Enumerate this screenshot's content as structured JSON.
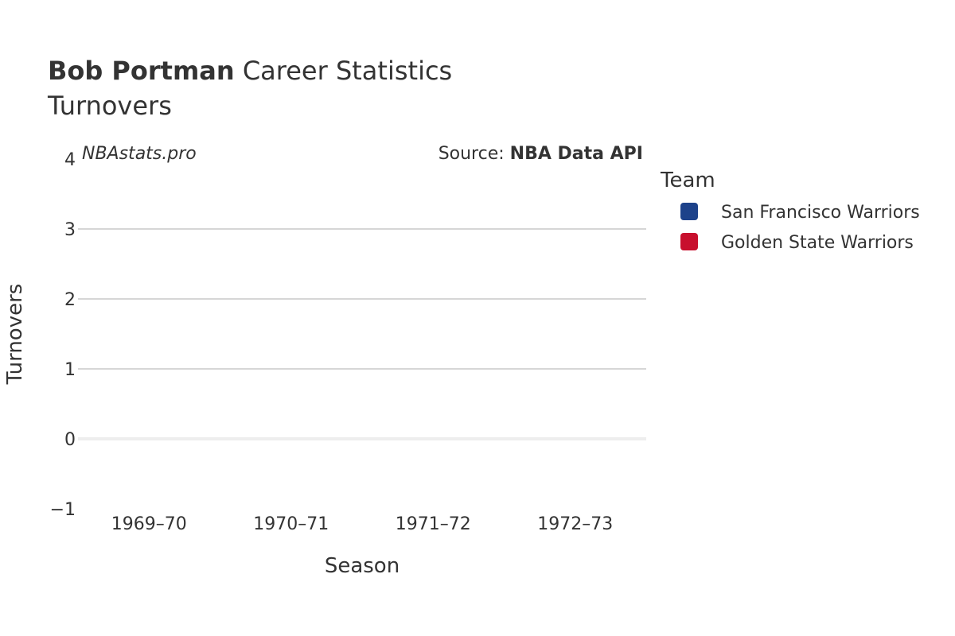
{
  "title": {
    "player": "Bob Portman",
    "rest": "Career Statistics",
    "subtitle": "Turnovers"
  },
  "watermark": "NBAstats.pro",
  "source": {
    "prefix": "Source: ",
    "name": "NBA Data API"
  },
  "legend": {
    "title": "Team"
  },
  "chart_data": {
    "type": "bar",
    "xlabel": "Season",
    "ylabel": "Turnovers",
    "categories": [
      "1969–70",
      "1970–71",
      "1971–72",
      "1972–73"
    ],
    "ylim": [
      -1,
      4
    ],
    "yticks": [
      -1,
      0,
      1,
      2,
      3,
      4
    ],
    "ytick_labels": [
      "−1",
      "0",
      "1",
      "2",
      "3",
      "4"
    ],
    "grid": true,
    "legend_position": "right",
    "series": [
      {
        "name": "San Francisco Warriors",
        "color": "#1d428a",
        "values": [
          null,
          null,
          null,
          null
        ]
      },
      {
        "name": "Golden State Warriors",
        "color": "#c8102e",
        "values": [
          null,
          null,
          null,
          null
        ]
      }
    ]
  }
}
